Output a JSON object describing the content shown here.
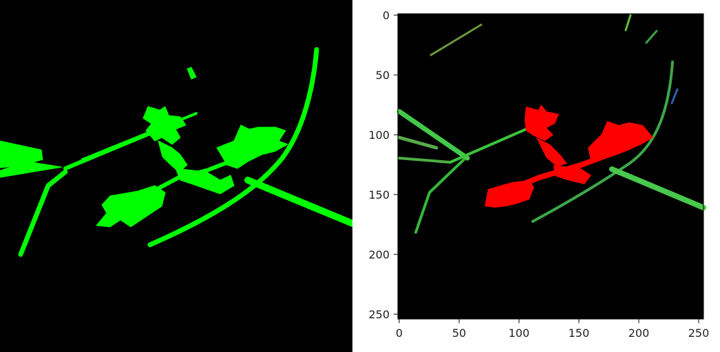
{
  "left_panel": {
    "background": "#000000",
    "mask_color": "#00ff00"
  },
  "right_plot": {
    "background": "#000000",
    "highlight_color": "#ff0000",
    "stem_color": "#3cc43c",
    "x_ticks": [
      "0",
      "50",
      "100",
      "150",
      "200",
      "250"
    ],
    "y_ticks": [
      "0",
      "50",
      "100",
      "150",
      "200",
      "250"
    ],
    "x_range": [
      0,
      256
    ],
    "y_range": [
      0,
      256
    ]
  }
}
